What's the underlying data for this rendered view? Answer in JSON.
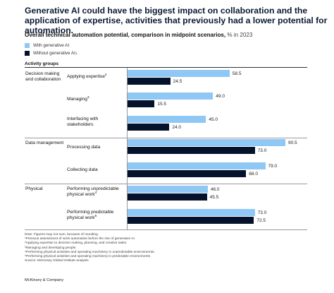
{
  "title": "Generative AI could have the biggest impact on collaboration and the application of expertise, activities that previously had a lower potential for automation.",
  "subtitle": "Overall technical automation potential, comparison in midpoint scenarios,",
  "subtitle_unit": "% in 2023",
  "colors": {
    "with": "#8fc8f5",
    "without": "#05122b"
  },
  "chart_data": {
    "type": "bar",
    "orientation": "horizontal",
    "title": "Overall technical automation potential, comparison in midpoint scenarios, % in 2023",
    "ylabel": "Activity groups",
    "xlim": [
      0,
      100
    ],
    "grid": false,
    "legend_position": "top-left",
    "series": [
      {
        "name": "With generative AI",
        "sup": "",
        "values": [
          58.5,
          49.0,
          45.0,
          90.5,
          79.0,
          46.0,
          73.0
        ]
      },
      {
        "name": "Without generative AI",
        "sup": "1",
        "values": [
          24.5,
          15.5,
          24.0,
          73.0,
          68.0,
          45.5,
          72.5
        ]
      }
    ],
    "value_labels": [
      [
        "58.5",
        "49.0",
        "45.0",
        "90.5",
        "79.0",
        "46.0",
        "73.0"
      ],
      [
        "24.5",
        "15.5",
        "24.0",
        "73.0",
        "68.0",
        "45.5",
        "72.5"
      ]
    ],
    "groups": [
      {
        "label": "Decision making and collaboration",
        "categories": [
          0,
          1,
          2
        ]
      },
      {
        "label": "Data management",
        "categories": [
          3,
          4
        ]
      },
      {
        "label": "Physical",
        "categories": [
          5,
          6
        ]
      }
    ],
    "categories": [
      {
        "label": "Applying expertise",
        "sup": "2"
      },
      {
        "label": "Managing",
        "sup": "3"
      },
      {
        "label": "Interfacing with stakeholders",
        "sup": ""
      },
      {
        "label": "Processing data",
        "sup": ""
      },
      {
        "label": "Collecting data",
        "sup": ""
      },
      {
        "label": "Performing unpredictable physical work",
        "sup": "4"
      },
      {
        "label": "Performing predictable physical work",
        "sup": "5"
      }
    ]
  },
  "notes": [
    "Note: Figures may not sum, because of rounding.",
    "¹Previous assessment of work automation before the rise of generative AI.",
    "²Applying expertise to decision making, planning, and creative tasks.",
    "³Managing and developing people.",
    "⁴Performing physical activities and operating machinery in unpredictable environments.",
    "⁵Performing physical activities and operating machinery in predictable environments.",
    "Source: McKinsey Global Institute analysis"
  ],
  "brand": "McKinsey & Company"
}
